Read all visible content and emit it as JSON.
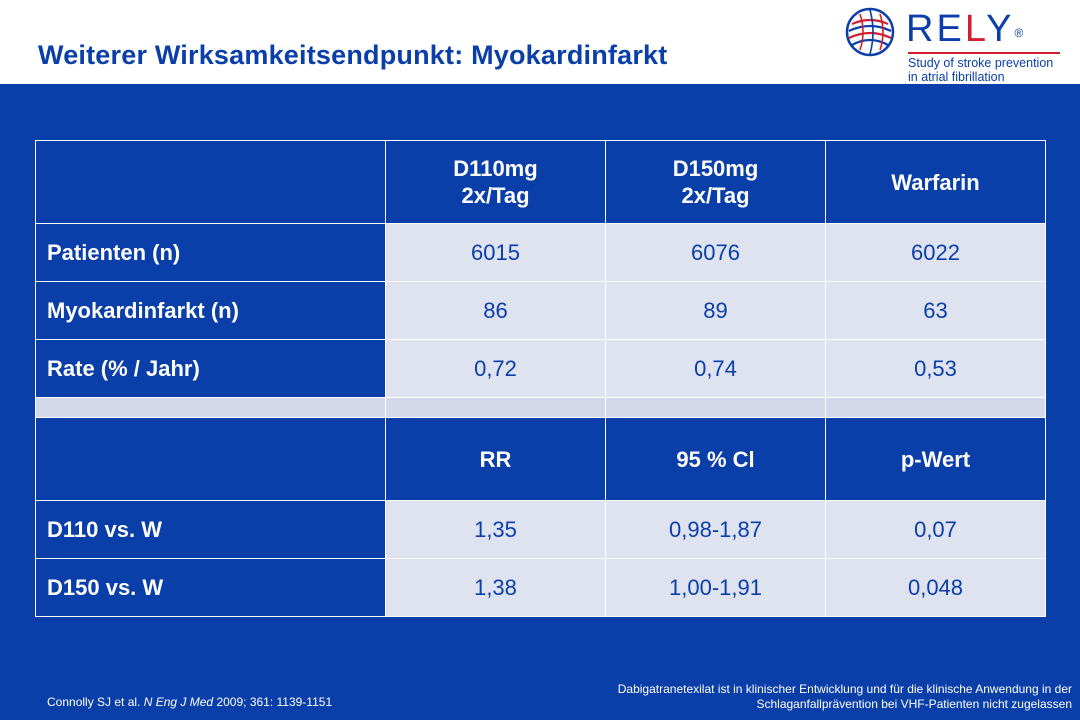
{
  "slide": {
    "title": "Weiterer Wirksamkeitsendpunkt: Myokardinfarkt"
  },
  "logo": {
    "word_r": "R",
    "word_e": "E",
    "word_l": "L",
    "word_y": "Y",
    "registered": "®",
    "tagline_1": "Study of stroke prevention",
    "tagline_2": "in atrial fibrillation",
    "colors": {
      "blue": "#0a3ea8",
      "red": "#d0202f"
    }
  },
  "table1": {
    "headers": [
      {
        "line1": "D110mg",
        "line2": "2x/Tag"
      },
      {
        "line1": "D150mg",
        "line2": "2x/Tag"
      },
      {
        "line1": "Warfarin",
        "line2": ""
      }
    ],
    "rows": [
      {
        "label": "Patienten (n)",
        "values": [
          "6015",
          "6076",
          "6022"
        ]
      },
      {
        "label": "Myokardinfarkt (n)",
        "values": [
          "86",
          "89",
          "63"
        ]
      },
      {
        "label": "Rate (% / Jahr)",
        "values": [
          "0,72",
          "0,74",
          "0,53"
        ]
      }
    ]
  },
  "table2": {
    "headers": [
      "RR",
      "95 % Cl",
      "p-Wert"
    ],
    "rows": [
      {
        "label": "D110 vs. W",
        "values": [
          "1,35",
          "0,98-1,87",
          "0,07"
        ]
      },
      {
        "label": "D150 vs. W",
        "values": [
          "1,38",
          "1,00-1,91",
          "0,048"
        ]
      }
    ]
  },
  "footer": {
    "cite_authors": "Connolly SJ et al.",
    "cite_journal": "N Eng J Med",
    "cite_rest": "2009; 361: 1139-1151",
    "disclaimer_line1": "Dabigatranetexilat ist in klinischer Entwicklung und für die klinische Anwendung in der",
    "disclaimer_line2": "Schlaganfallprävention bei VHF-Patienten nicht zugelassen"
  },
  "colors": {
    "background": "#0a3ea8",
    "cell_light": "#dfe3f0",
    "header_white": "#ffffff"
  }
}
